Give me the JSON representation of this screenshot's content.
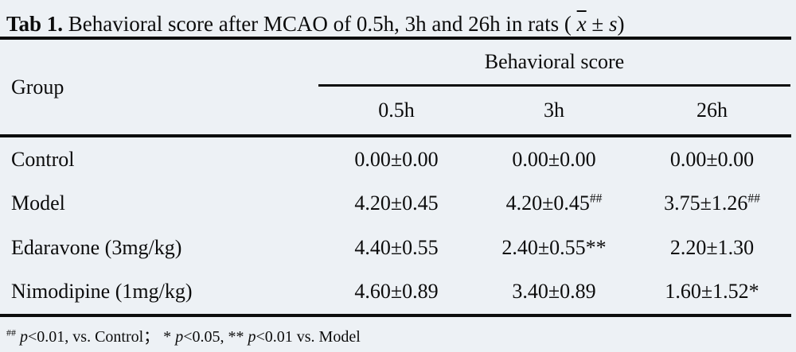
{
  "page": {
    "background_color": "#edf1f5",
    "rule_color": "#0d0d0d",
    "text_color": "#0c0c0c"
  },
  "title": {
    "segments": [
      {
        "t": "Tab 1.",
        "b": true
      },
      {
        "t": " Behavioral score after MCAO of 0.5h, 3h and 26h in rats ( "
      },
      {
        "t": "x",
        "i": true,
        "ov": true
      },
      {
        "t": " ± ",
        "i": false
      },
      {
        "t": "s",
        "i": true
      },
      {
        "t": ")"
      }
    ]
  },
  "table": {
    "group_header": "Group",
    "span_header": "Behavioral score",
    "columns": [
      "0.5h",
      "3h",
      "26h"
    ],
    "rows": [
      {
        "group": "Control",
        "values": [
          [
            {
              "t": "0.00±0.00"
            }
          ],
          [
            {
              "t": "0.00±0.00"
            }
          ],
          [
            {
              "t": "0.00±0.00"
            }
          ]
        ]
      },
      {
        "group": "Model",
        "values": [
          [
            {
              "t": "4.20±0.45"
            }
          ],
          [
            {
              "t": "4.20±0.45"
            },
            {
              "t": "##",
              "sup": true
            }
          ],
          [
            {
              "t": "3.75±1.26"
            },
            {
              "t": "##",
              "sup": true
            }
          ]
        ]
      },
      {
        "group": "Edaravone (3mg/kg)",
        "values": [
          [
            {
              "t": "4.40±0.55"
            }
          ],
          [
            {
              "t": "2.40±0.55**"
            }
          ],
          [
            {
              "t": "2.20±1.30"
            }
          ]
        ]
      },
      {
        "group": "Nimodipine (1mg/kg)",
        "values": [
          [
            {
              "t": "4.60±0.89"
            }
          ],
          [
            {
              "t": "3.40±0.89"
            }
          ],
          [
            {
              "t": "1.60±1.52*"
            }
          ]
        ]
      }
    ]
  },
  "footnote": {
    "segments": [
      {
        "t": "##",
        "sup": true
      },
      {
        "t": " "
      },
      {
        "t": "p",
        "i": true
      },
      {
        "t": "<0.01, vs. Control；  * "
      },
      {
        "t": "p",
        "i": true
      },
      {
        "t": "<0.05, ** "
      },
      {
        "t": "p",
        "i": true
      },
      {
        "t": "<0.01 vs. Model"
      }
    ]
  }
}
